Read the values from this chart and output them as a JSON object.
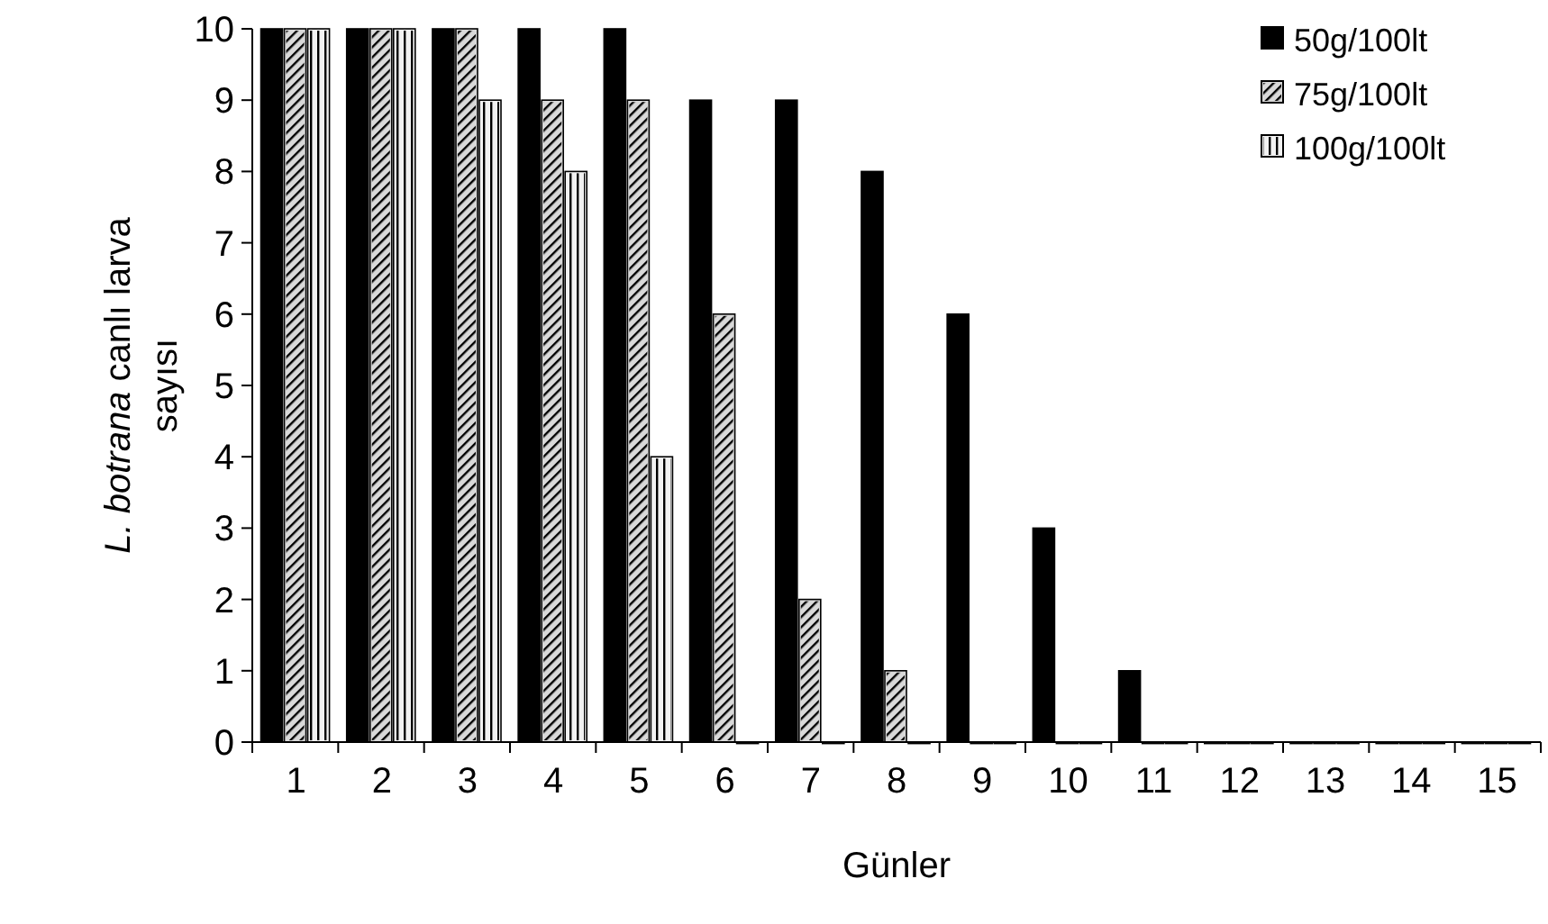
{
  "chart_data": {
    "type": "bar",
    "xlabel": "Günler",
    "ylabel": "L. botrana canlı larva sayısı",
    "categories": [
      "1",
      "2",
      "3",
      "4",
      "5",
      "6",
      "7",
      "8",
      "9",
      "10",
      "11",
      "12",
      "13",
      "14",
      "15"
    ],
    "series": [
      {
        "name": "50g/100lt",
        "color": "#000000",
        "values": [
          10,
          10,
          10,
          10,
          10,
          9,
          9,
          8,
          6,
          3,
          1,
          0,
          0,
          0,
          0
        ]
      },
      {
        "name": "75g/100lt",
        "color": "#d9d9d9",
        "values": [
          10,
          10,
          10,
          9,
          9,
          6,
          2,
          1,
          0,
          0,
          0,
          0,
          0,
          0,
          0
        ]
      },
      {
        "name": "100g/100lt",
        "color": "#f2f2f2",
        "values": [
          10,
          10,
          9,
          8,
          4,
          0,
          0,
          0,
          0,
          0,
          0,
          0,
          0,
          0,
          0
        ]
      }
    ],
    "ylim": [
      0,
      10
    ],
    "yticks": [
      0,
      1,
      2,
      3,
      4,
      5,
      6,
      7,
      8,
      9,
      10
    ],
    "grid": false,
    "legend": "top right"
  }
}
